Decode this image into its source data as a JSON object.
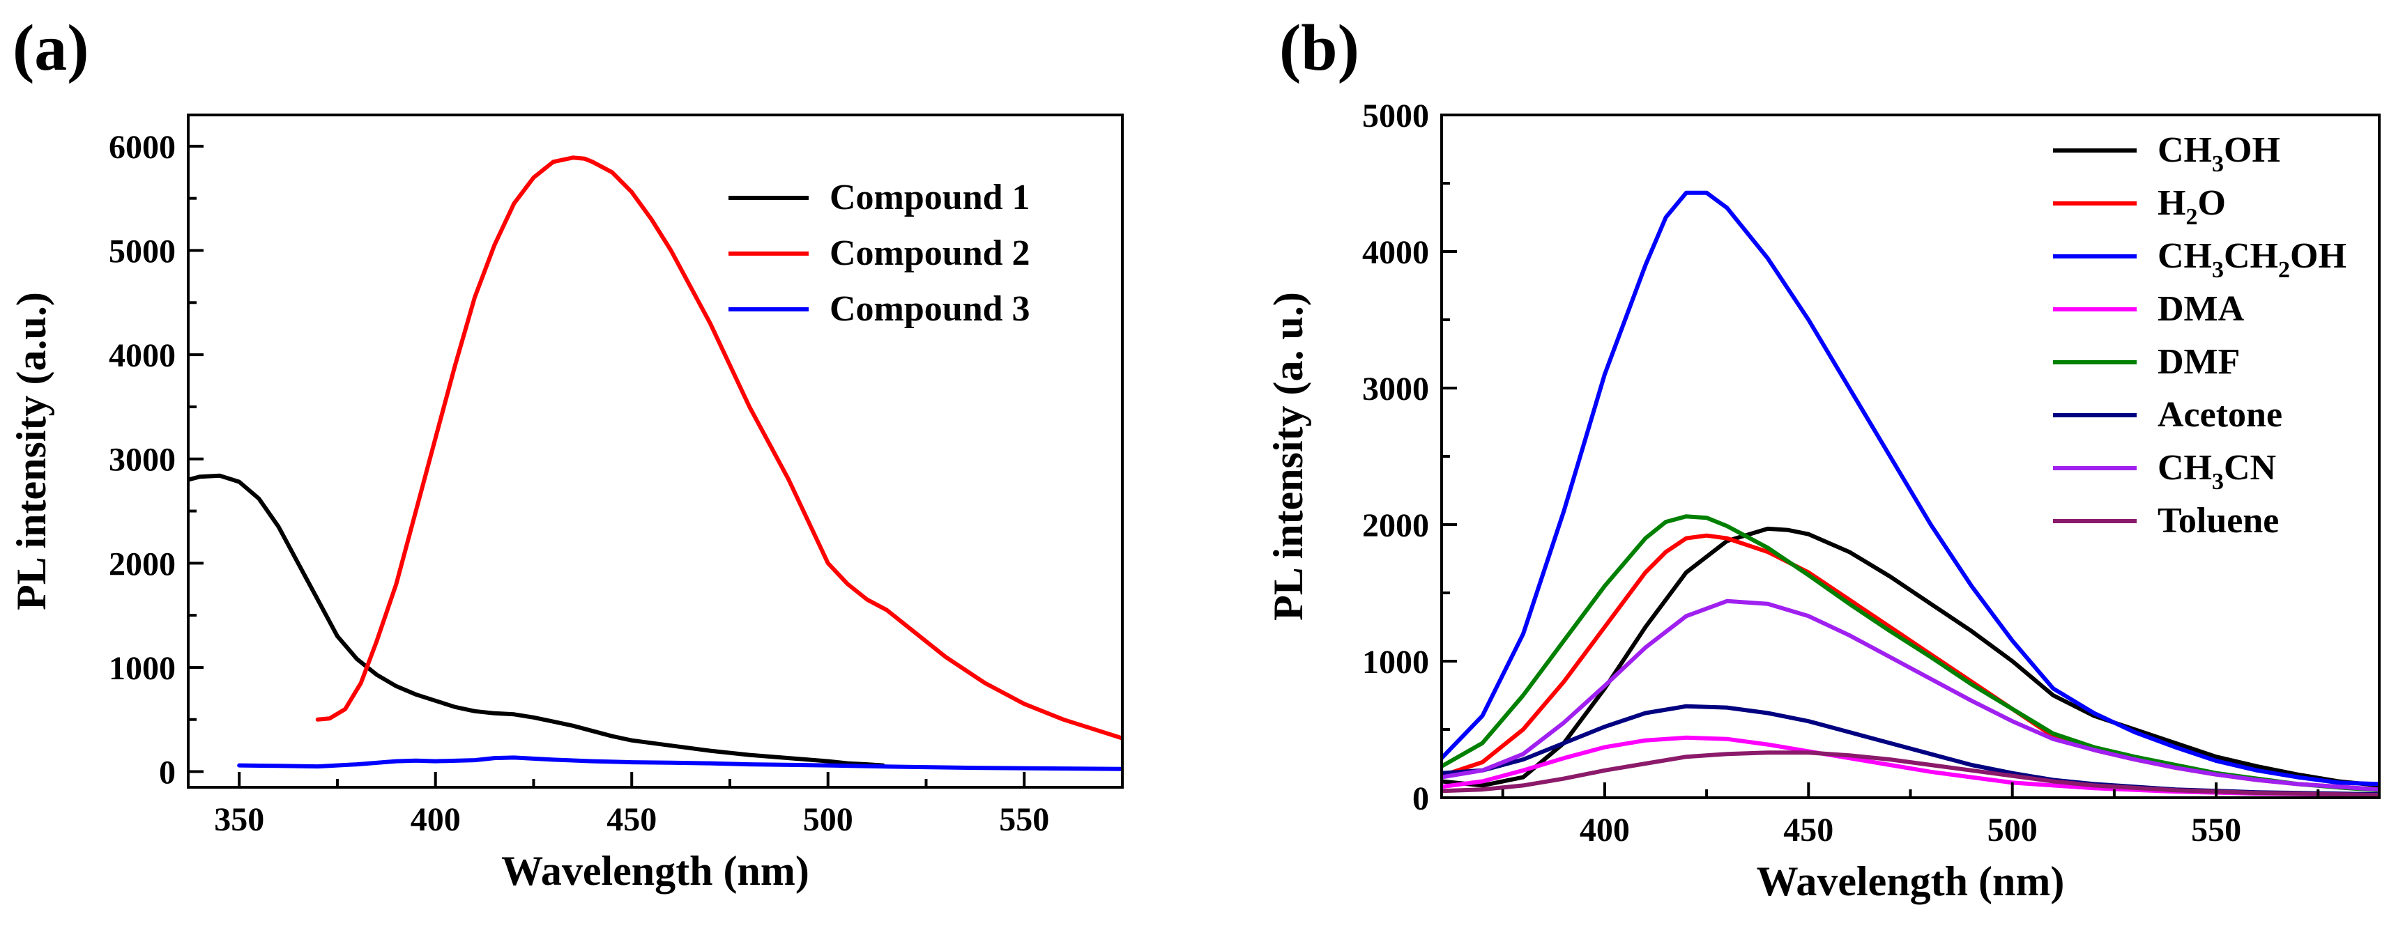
{
  "chart_data": [
    {
      "panel_label": "(a)",
      "type": "line",
      "title": "",
      "xlabel": "Wavelength (nm)",
      "ylabel": "PL intensity (a.u.)",
      "xlim": [
        337,
        575
      ],
      "ylim": [
        -150,
        6300
      ],
      "xticks": [
        350,
        400,
        450,
        500,
        550
      ],
      "yticks": [
        0,
        1000,
        2000,
        3000,
        4000,
        5000,
        6000
      ],
      "legend_position": "top-right",
      "series": [
        {
          "name": "Compound 1",
          "color": "#000000",
          "x": [
            337,
            340,
            345,
            350,
            355,
            360,
            365,
            370,
            375,
            380,
            385,
            390,
            395,
            400,
            405,
            410,
            415,
            420,
            425,
            430,
            435,
            440,
            445,
            450,
            460,
            470,
            480,
            490,
            500,
            505,
            510,
            514
          ],
          "y": [
            2800,
            2830,
            2840,
            2780,
            2620,
            2350,
            2000,
            1650,
            1300,
            1080,
            930,
            820,
            740,
            680,
            620,
            580,
            560,
            550,
            520,
            480,
            440,
            390,
            340,
            300,
            250,
            200,
            160,
            130,
            100,
            80,
            70,
            60
          ]
        },
        {
          "name": "Compound 2",
          "color": "#ff0000",
          "x": [
            370,
            373,
            377,
            381,
            385,
            390,
            395,
            400,
            405,
            410,
            415,
            420,
            425,
            430,
            435,
            438,
            440,
            445,
            450,
            455,
            460,
            465,
            470,
            475,
            480,
            485,
            490,
            495,
            500,
            505,
            510,
            515,
            520,
            530,
            540,
            550,
            560,
            575
          ],
          "y": [
            500,
            510,
            600,
            850,
            1250,
            1800,
            2500,
            3200,
            3900,
            4550,
            5050,
            5450,
            5700,
            5850,
            5890,
            5880,
            5850,
            5750,
            5560,
            5300,
            5000,
            4650,
            4300,
            3900,
            3500,
            3150,
            2800,
            2400,
            2000,
            1800,
            1650,
            1550,
            1400,
            1100,
            850,
            650,
            500,
            320
          ]
        },
        {
          "name": "Compound 3",
          "color": "#0000ff",
          "x": [
            350,
            360,
            370,
            380,
            390,
            395,
            400,
            410,
            415,
            420,
            425,
            430,
            440,
            450,
            460,
            470,
            480,
            500,
            520,
            540,
            560,
            575
          ],
          "y": [
            60,
            55,
            50,
            70,
            100,
            105,
            100,
            110,
            130,
            135,
            125,
            115,
            100,
            90,
            85,
            80,
            70,
            60,
            45,
            35,
            30,
            25
          ]
        }
      ]
    },
    {
      "panel_label": "(b)",
      "type": "line",
      "title": "",
      "xlabel": "Wavelength (nm)",
      "ylabel": "PL intensity (a. u.)",
      "xlim": [
        360,
        590
      ],
      "ylim": [
        0,
        5000
      ],
      "xticks": [
        400,
        450,
        500,
        550
      ],
      "yticks": [
        0,
        1000,
        2000,
        3000,
        4000,
        5000
      ],
      "legend_position": "top-right",
      "series": [
        {
          "name": "CH3OH",
          "display": [
            "CH",
            "3",
            "OH"
          ],
          "color": "#000000",
          "x": [
            360,
            370,
            380,
            390,
            400,
            410,
            420,
            430,
            440,
            445,
            450,
            460,
            470,
            480,
            490,
            500,
            510,
            520,
            530,
            540,
            550,
            560,
            570,
            580,
            590
          ],
          "y": [
            120,
            90,
            150,
            400,
            800,
            1250,
            1650,
            1880,
            1970,
            1960,
            1930,
            1800,
            1620,
            1420,
            1220,
            1000,
            750,
            600,
            500,
            400,
            300,
            230,
            170,
            120,
            90
          ]
        },
        {
          "name": "H2O",
          "display": [
            "H",
            "2",
            "O"
          ],
          "color": "#ff0000",
          "x": [
            360,
            370,
            380,
            390,
            400,
            410,
            415,
            420,
            425,
            430,
            440,
            450,
            460,
            470,
            480,
            490,
            500,
            510,
            520,
            530,
            540,
            550,
            560,
            570,
            580,
            590
          ],
          "y": [
            160,
            260,
            500,
            850,
            1250,
            1650,
            1800,
            1900,
            1920,
            1900,
            1800,
            1650,
            1450,
            1250,
            1050,
            850,
            650,
            450,
            350,
            280,
            220,
            170,
            130,
            100,
            80,
            60
          ]
        },
        {
          "name": "CH3CH2OH",
          "display": [
            "CH",
            "3",
            "CH",
            "2",
            "OH"
          ],
          "color": "#0000ff",
          "x": [
            360,
            370,
            380,
            390,
            400,
            410,
            415,
            420,
            425,
            430,
            440,
            450,
            460,
            470,
            480,
            490,
            500,
            510,
            520,
            530,
            540,
            550,
            560,
            570,
            580,
            590
          ],
          "y": [
            290,
            600,
            1200,
            2100,
            3100,
            3900,
            4250,
            4430,
            4430,
            4320,
            3950,
            3500,
            3000,
            2500,
            2000,
            1550,
            1150,
            800,
            620,
            480,
            370,
            270,
            200,
            150,
            110,
            100
          ]
        },
        {
          "name": "DMA",
          "display": [
            "DMA"
          ],
          "color": "#ff00ff",
          "x": [
            360,
            370,
            380,
            390,
            400,
            410,
            420,
            430,
            440,
            450,
            460,
            470,
            480,
            490,
            500,
            520,
            540,
            560,
            590
          ],
          "y": [
            80,
            120,
            200,
            290,
            370,
            420,
            440,
            430,
            390,
            340,
            290,
            240,
            190,
            150,
            110,
            70,
            45,
            30,
            20
          ]
        },
        {
          "name": "DMF",
          "display": [
            "DMF"
          ],
          "color": "#008000",
          "x": [
            360,
            370,
            380,
            390,
            400,
            410,
            415,
            420,
            425,
            430,
            440,
            450,
            460,
            470,
            480,
            490,
            500,
            510,
            520,
            530,
            540,
            550,
            560,
            570,
            580,
            590
          ],
          "y": [
            230,
            400,
            750,
            1150,
            1550,
            1900,
            2020,
            2060,
            2050,
            1990,
            1830,
            1630,
            1420,
            1220,
            1030,
            830,
            650,
            470,
            370,
            300,
            240,
            180,
            140,
            100,
            75,
            55
          ]
        },
        {
          "name": "Acetone",
          "display": [
            "Acetone"
          ],
          "color": "#000080",
          "x": [
            360,
            370,
            380,
            390,
            400,
            410,
            420,
            430,
            440,
            450,
            460,
            470,
            480,
            490,
            500,
            510,
            520,
            540,
            560,
            590
          ],
          "y": [
            180,
            200,
            280,
            400,
            520,
            620,
            670,
            660,
            620,
            560,
            480,
            400,
            320,
            240,
            180,
            130,
            100,
            60,
            40,
            25
          ]
        },
        {
          "name": "CH3CN",
          "display": [
            "CH",
            "3",
            "CN"
          ],
          "color": "#a020f0",
          "x": [
            360,
            370,
            380,
            390,
            400,
            410,
            420,
            430,
            440,
            450,
            460,
            470,
            480,
            490,
            500,
            510,
            520,
            530,
            540,
            550,
            560,
            570,
            580,
            590
          ],
          "y": [
            150,
            200,
            320,
            550,
            820,
            1100,
            1330,
            1440,
            1420,
            1330,
            1190,
            1030,
            870,
            710,
            560,
            430,
            350,
            280,
            220,
            170,
            130,
            100,
            80,
            60
          ]
        },
        {
          "name": "Toluene",
          "display": [
            "Toluene"
          ],
          "color": "#8b1a6b",
          "x": [
            360,
            370,
            380,
            390,
            400,
            410,
            420,
            430,
            440,
            450,
            460,
            470,
            480,
            490,
            500,
            510,
            520,
            540,
            560,
            590
          ],
          "y": [
            50,
            60,
            90,
            140,
            200,
            250,
            300,
            320,
            330,
            330,
            310,
            280,
            240,
            200,
            160,
            120,
            90,
            55,
            35,
            20
          ]
        }
      ]
    }
  ]
}
